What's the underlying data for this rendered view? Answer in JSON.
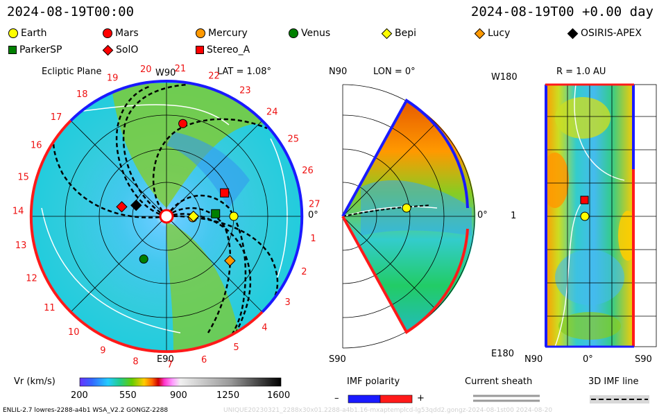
{
  "header": {
    "time_left": "2024-08-19T00:00",
    "time_right": "2024-08-19T00 +0.00 day"
  },
  "legend": [
    {
      "label": "Earth",
      "shape": "circle",
      "color": "#ffff00"
    },
    {
      "label": "Mars",
      "shape": "circle",
      "color": "#ff0000"
    },
    {
      "label": "Mercury",
      "shape": "circle",
      "color": "#ff9900"
    },
    {
      "label": "Venus",
      "shape": "circle",
      "color": "#008000"
    },
    {
      "label": "Bepi",
      "shape": "diamond",
      "color": "#ffff00"
    },
    {
      "label": "Lucy",
      "shape": "diamond",
      "color": "#ff9900"
    },
    {
      "label": "OSIRIS-APEX",
      "shape": "diamond",
      "color": "#000000"
    },
    {
      "label": "ParkerSP",
      "shape": "square",
      "color": "#008000"
    },
    {
      "label": "SolO",
      "shape": "diamond",
      "color": "#ff0000"
    },
    {
      "label": "Stereo_A",
      "shape": "square",
      "color": "#ff0000"
    }
  ],
  "panels": {
    "ecliptic": {
      "title": "Ecliptic Plane",
      "top_label": "W90",
      "lat_label": "LAT = 1.08°",
      "bottom_label": "E90",
      "right_label": "0°",
      "rotation_numbers": [
        "20",
        "21",
        "22",
        "23",
        "24",
        "25",
        "26",
        "27",
        "1",
        "2",
        "3",
        "4",
        "5",
        "6",
        "7",
        "8",
        "9",
        "10",
        "11",
        "12",
        "13",
        "14",
        "15",
        "16",
        "17",
        "18",
        "19"
      ]
    },
    "meridional": {
      "top_label": "N90",
      "lon_label": "LON = 0°",
      "bottom_label": "S90",
      "right_label": "0°"
    },
    "radial": {
      "title": "R = 1.0 AU",
      "y_top": "W180",
      "y_mid": "1",
      "y_bottom": "E180",
      "x_left": "N90",
      "x_mid": "0°",
      "x_right": "S90"
    }
  },
  "colorbar": {
    "label": "Vr (km/s)",
    "ticks": [
      "200",
      "550",
      "900",
      "1250",
      "1600"
    ]
  },
  "imf_polarity": {
    "label": "IMF polarity",
    "minus": "–",
    "plus": "+"
  },
  "current_sheath": {
    "label": "Current sheath"
  },
  "imf_line": {
    "label": "3D IMF line"
  },
  "footer": {
    "left": "ENLIL-2.7 lowres-2288-a4b1 WSA_V2.2 GONGZ-2288",
    "right": "UNIQUE20230321_2288x30x01.2288-a4b1.16-mxaptemplcd-lg53qdd2.gongz-2024-08-1st00   2024-08-20"
  },
  "chart_data": {
    "type": "heatmap",
    "quantity": "Vr (km/s)",
    "color_range": [
      200,
      1600
    ],
    "bodies_ecliptic": [
      {
        "name": "Earth",
        "r_au": 1.0,
        "lon_deg": 0
      },
      {
        "name": "Mars",
        "r_au": 1.4,
        "lon_deg": 80
      },
      {
        "name": "Mercury",
        "r_au": 0.39,
        "lon_deg": -3
      },
      {
        "name": "Venus",
        "r_au": 0.72,
        "lon_deg": -118
      },
      {
        "name": "Bepi",
        "r_au": 0.4,
        "lon_deg": 0
      },
      {
        "name": "Lucy",
        "r_au": 1.15,
        "lon_deg": -35
      },
      {
        "name": "OSIRIS-APEX",
        "r_au": 0.48,
        "lon_deg": 160
      },
      {
        "name": "ParkerSP",
        "r_au": 0.73,
        "lon_deg": 3
      },
      {
        "name": "SolO",
        "r_au": 0.68,
        "lon_deg": 168
      },
      {
        "name": "Stereo_A",
        "r_au": 0.93,
        "lon_deg": 22
      }
    ]
  }
}
